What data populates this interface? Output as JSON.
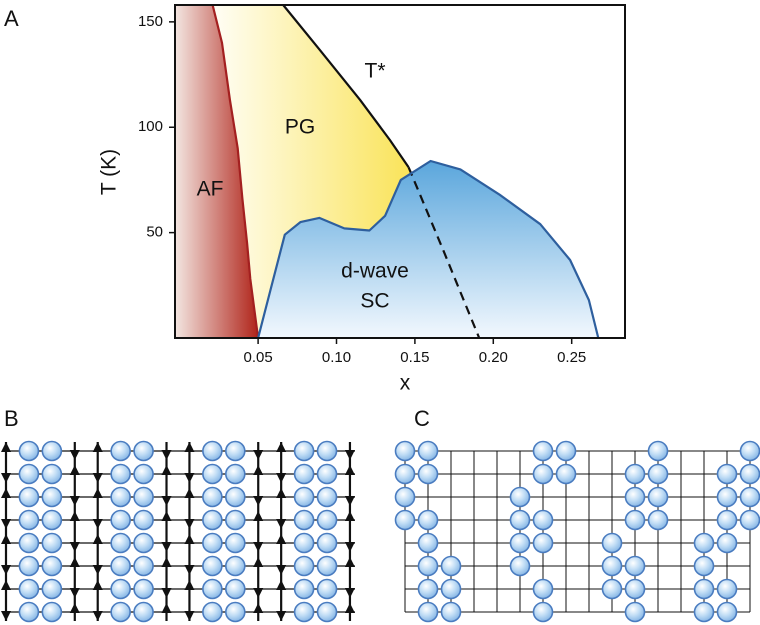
{
  "panel_labels": [
    "A",
    "B",
    "C"
  ],
  "chart_data": {
    "type": "phase-diagram",
    "x_label": "x",
    "y_label": "T (K)",
    "xlim": [
      -0.003,
      0.284
    ],
    "ylim": [
      0,
      158
    ],
    "xticks": [
      {
        "value": 0.05,
        "label": "0.05"
      },
      {
        "value": 0.1,
        "label": "0.10"
      },
      {
        "value": 0.15,
        "label": "0.15"
      },
      {
        "value": 0.2,
        "label": "0.20"
      },
      {
        "value": 0.25,
        "label": "0.25"
      }
    ],
    "yticks": [
      50,
      100,
      150
    ],
    "annotations": [
      "AF",
      "PG",
      "T*",
      "d-wave",
      "SC"
    ],
    "curves": [
      {
        "x": [
          0.021,
          0.027,
          0.032,
          0.037,
          0.04,
          0.043,
          0.045,
          0.05
        ],
        "y": [
          158,
          140,
          113,
          90,
          66,
          45,
          28,
          0
        ],
        "color": "#a32020",
        "dashed": false
      },
      {
        "x": [
          0.066,
          0.089,
          0.115,
          0.134,
          0.146
        ],
        "y": [
          158,
          137,
          113,
          94,
          81
        ],
        "color": "#111111",
        "dashed": false
      },
      {
        "x": [
          0.146,
          0.169,
          0.191
        ],
        "y": [
          81,
          40,
          0
        ],
        "color": "#111111",
        "dashed": true
      },
      {
        "x": [
          0.05,
          0.058,
          0.067,
          0.077,
          0.089,
          0.105,
          0.121,
          0.131,
          0.141,
          0.16,
          0.179,
          0.204,
          0.23,
          0.249,
          0.261,
          0.267
        ],
        "y": [
          0,
          23,
          49,
          55,
          57,
          52,
          51,
          58,
          75,
          84,
          80,
          68,
          54,
          37,
          18,
          0
        ],
        "color": "#2e5f9e",
        "dashed": false
      }
    ]
  }
}
